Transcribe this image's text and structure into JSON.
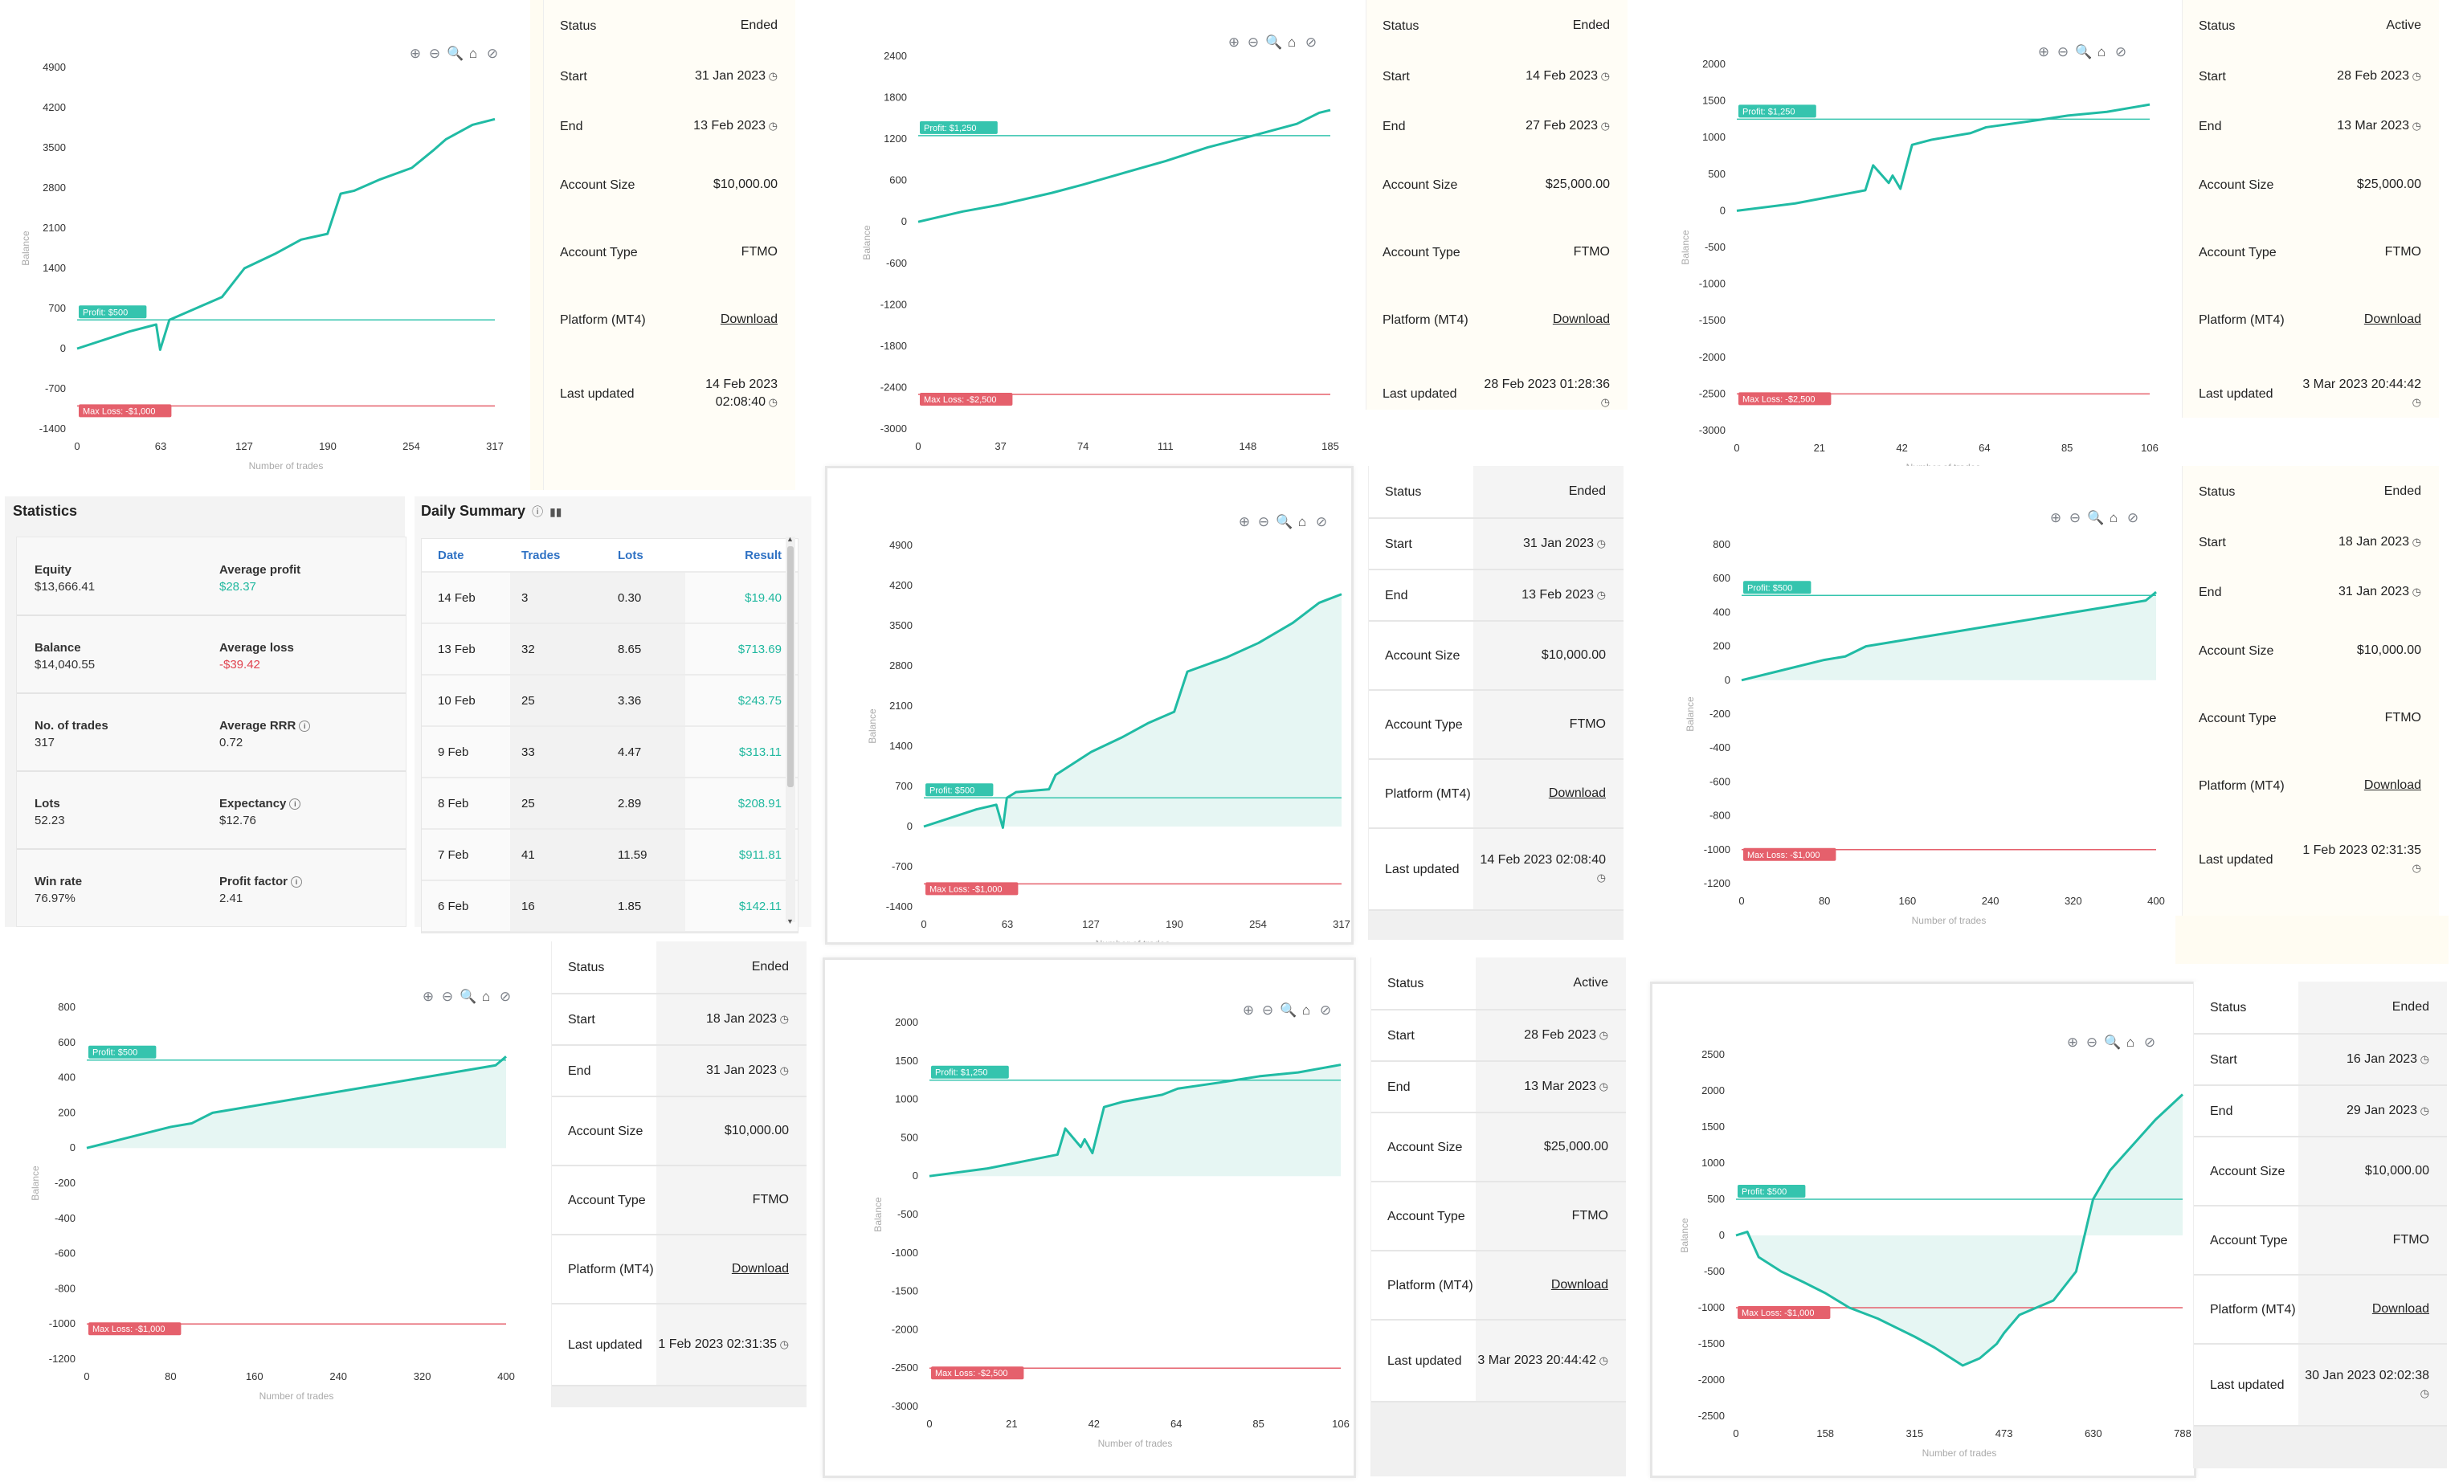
{
  "colors": {
    "line": "#20bba4",
    "profit": "#35c4ae",
    "loss": "#e5606c",
    "grid": "#f1f1f1",
    "axis": "#333333"
  },
  "toolbar_icons": [
    "zoom-in-icon",
    "zoom-out-icon",
    "magnify-icon",
    "home-icon",
    "pan-hide-icon"
  ],
  "toolbar_glyphs": {
    "zin": "⊕",
    "zout": "⊖",
    "mag": "🔍",
    "home": "⌂",
    "hide": "⊘"
  },
  "charts": [
    {
      "id": "c1",
      "ylabel": "Balance",
      "xlabel": "Number of trades",
      "yticks": [
        "4900",
        "4200",
        "3500",
        "2800",
        "2100",
        "1400",
        "700",
        "0",
        "-700",
        "-1400"
      ],
      "xticks": [
        "0",
        "63",
        "127",
        "190",
        "254",
        "317"
      ],
      "profit_label": "Profit: $500",
      "loss_label": "Max Loss: -$1,000",
      "area": false
    },
    {
      "id": "c2",
      "ylabel": "Balance",
      "xlabel": "Number of trades",
      "yticks": [
        "2400",
        "1800",
        "1200",
        "600",
        "0",
        "-600",
        "-1200",
        "-1800",
        "-2400",
        "-3000"
      ],
      "xticks": [
        "0",
        "37",
        "74",
        "111",
        "148",
        "185"
      ],
      "profit_label": "Profit: $1,250",
      "loss_label": "Max Loss: -$2,500",
      "area": false
    },
    {
      "id": "c3",
      "ylabel": "Balance",
      "xlabel": "Number of trades",
      "yticks": [
        "2000",
        "1500",
        "1000",
        "500",
        "0",
        "-500",
        "-1000",
        "-1500",
        "-2000",
        "-2500",
        "-3000"
      ],
      "xticks": [
        "0",
        "21",
        "42",
        "64",
        "85",
        "106"
      ],
      "profit_label": "Profit: $1,250",
      "loss_label": "Max Loss: -$2,500",
      "area": false
    },
    {
      "id": "c4",
      "ylabel": "Balance",
      "xlabel": "Number of trades",
      "yticks": [
        "4900",
        "4200",
        "3500",
        "2800",
        "2100",
        "1400",
        "700",
        "0",
        "-700",
        "-1400"
      ],
      "xticks": [
        "0",
        "63",
        "127",
        "190",
        "254",
        "317"
      ],
      "profit_label": "Profit: $500",
      "loss_label": "Max Loss: -$1,000",
      "area": true
    },
    {
      "id": "c5",
      "ylabel": "Balance",
      "xlabel": "Number of trades",
      "yticks": [
        "800",
        "600",
        "400",
        "200",
        "0",
        "-200",
        "-400",
        "-600",
        "-800",
        "-1000",
        "-1200"
      ],
      "xticks": [
        "0",
        "80",
        "160",
        "240",
        "320",
        "400"
      ],
      "profit_label": "Profit: $500",
      "loss_label": "Max Loss: -$1,000",
      "area": true
    },
    {
      "id": "c6",
      "ylabel": "Balance",
      "xlabel": "Number of trades",
      "yticks": [
        "800",
        "600",
        "400",
        "200",
        "0",
        "-200",
        "-400",
        "-600",
        "-800",
        "-1000",
        "-1200"
      ],
      "xticks": [
        "0",
        "80",
        "160",
        "240",
        "320",
        "400"
      ],
      "profit_label": "Profit: $500",
      "loss_label": "Max Loss: -$1,000",
      "area": true
    },
    {
      "id": "c7",
      "ylabel": "Balance",
      "xlabel": "Number of trades",
      "yticks": [
        "2000",
        "1500",
        "1000",
        "500",
        "0",
        "-500",
        "-1000",
        "-1500",
        "-2000",
        "-2500",
        "-3000"
      ],
      "xticks": [
        "0",
        "21",
        "42",
        "64",
        "85",
        "106"
      ],
      "profit_label": "Profit: $1,250",
      "loss_label": "Max Loss: -$2,500",
      "area": true
    },
    {
      "id": "c8",
      "ylabel": "Balance",
      "xlabel": "Number of trades",
      "yticks": [
        "2500",
        "2000",
        "1500",
        "1000",
        "500",
        "0",
        "-500",
        "-1000",
        "-1500",
        "-2000",
        "-2500"
      ],
      "xticks": [
        "0",
        "158",
        "315",
        "473",
        "630",
        "788"
      ],
      "profit_label": "Profit: $500",
      "loss_label": "Max Loss: -$1,000",
      "area": true
    }
  ],
  "info_labels": {
    "status": "Status",
    "start": "Start",
    "end": "End",
    "account_size": "Account Size",
    "account_type": "Account Type",
    "platform": "Platform (MT4)",
    "last_updated": "Last updated",
    "download": "Download"
  },
  "info": [
    {
      "status": "Ended",
      "start": "31 Jan 2023",
      "end": "13 Feb 2023",
      "size": "$10,000.00",
      "type": "FTMO",
      "updated": "14 Feb 2023 02:08:40"
    },
    {
      "status": "Ended",
      "start": "14 Feb 2023",
      "end": "27 Feb 2023",
      "size": "$25,000.00",
      "type": "FTMO",
      "updated": "28 Feb 2023 01:28:36"
    },
    {
      "status": "Active",
      "start": "28 Feb 2023",
      "end": "13 Mar 2023",
      "size": "$25,000.00",
      "type": "FTMO",
      "updated": "3 Mar 2023 20:44:42"
    },
    {
      "status": "Ended",
      "start": "31 Jan 2023",
      "end": "13 Feb 2023",
      "size": "$10,000.00",
      "type": "FTMO",
      "updated": "14 Feb 2023 02:08:40"
    },
    {
      "status": "Ended",
      "start": "18 Jan 2023",
      "end": "31 Jan 2023",
      "size": "$10,000.00",
      "type": "FTMO",
      "updated": "1 Feb 2023 02:31:35"
    },
    {
      "status": "Ended",
      "start": "18 Jan 2023",
      "end": "31 Jan 2023",
      "size": "$10,000.00",
      "type": "FTMO",
      "updated": "1 Feb 2023 02:31:35"
    },
    {
      "status": "Active",
      "start": "28 Feb 2023",
      "end": "13 Mar 2023",
      "size": "$25,000.00",
      "type": "FTMO",
      "updated": "3 Mar 2023 20:44:42"
    },
    {
      "status": "Ended",
      "start": "16 Jan 2023",
      "end": "29 Jan 2023",
      "size": "$10,000.00",
      "type": "FTMO",
      "updated": "30 Jan 2023 02:02:38"
    }
  ],
  "statistics": {
    "title": "Statistics",
    "rows": [
      {
        "lk": "Equity",
        "lv": "$13,666.41",
        "rk": "Average profit",
        "rv": "$28.37",
        "rv_tone": "pos",
        "info": false
      },
      {
        "lk": "Balance",
        "lv": "$14,040.55",
        "rk": "Average loss",
        "rv": "-$39.42",
        "rv_tone": "neg",
        "info": false
      },
      {
        "lk": "No. of trades",
        "lv": "317",
        "rk": "Average RRR",
        "rv": "0.72",
        "rv_tone": "",
        "info": true
      },
      {
        "lk": "Lots",
        "lv": "52.23",
        "rk": "Expectancy",
        "rv": "$12.76",
        "rv_tone": "",
        "info": true
      },
      {
        "lk": "Win rate",
        "lv": "76.97%",
        "rk": "Profit factor",
        "rv": "2.41",
        "rv_tone": "",
        "info": true
      }
    ]
  },
  "daily_summary": {
    "title": "Daily Summary",
    "headers": [
      "Date",
      "Trades",
      "Lots",
      "Result"
    ],
    "rows": [
      [
        "14 Feb",
        "3",
        "0.30",
        "$19.40"
      ],
      [
        "13 Feb",
        "32",
        "8.65",
        "$713.69"
      ],
      [
        "10 Feb",
        "25",
        "3.36",
        "$243.75"
      ],
      [
        "9 Feb",
        "33",
        "4.47",
        "$313.11"
      ],
      [
        "8 Feb",
        "25",
        "2.89",
        "$208.91"
      ],
      [
        "7 Feb",
        "41",
        "11.59",
        "$911.81"
      ],
      [
        "6 Feb",
        "16",
        "1.85",
        "$142.11"
      ]
    ]
  },
  "chart_data": [
    {
      "type": "line",
      "ylabel": "Balance",
      "xlabel": "Number of trades",
      "x_range": [
        0,
        317
      ],
      "y_range": [
        -1400,
        4900
      ],
      "profit_target": 500,
      "max_loss": -1000,
      "series": [
        {
          "x": [
            0,
            20,
            40,
            60,
            63,
            70,
            90,
            110,
            127,
            150,
            170,
            190,
            200,
            210,
            230,
            254,
            270,
            280,
            300,
            317
          ],
          "values": [
            0,
            150,
            300,
            420,
            -20,
            500,
            700,
            900,
            1400,
            1650,
            1900,
            2000,
            2700,
            2750,
            2950,
            3150,
            3450,
            3650,
            3900,
            4000
          ]
        }
      ]
    },
    {
      "type": "line",
      "ylabel": "Balance",
      "xlabel": "Number of trades",
      "x_range": [
        0,
        185
      ],
      "y_range": [
        -3000,
        2400
      ],
      "profit_target": 1250,
      "max_loss": -2500,
      "series": [
        {
          "x": [
            0,
            20,
            37,
            60,
            74,
            100,
            111,
            130,
            148,
            170,
            180,
            185
          ],
          "values": [
            0,
            150,
            250,
            420,
            540,
            780,
            880,
            1080,
            1230,
            1420,
            1580,
            1620
          ]
        }
      ]
    },
    {
      "type": "line",
      "ylabel": "Balance",
      "xlabel": "Number of trades",
      "x_range": [
        0,
        106
      ],
      "y_range": [
        -3000,
        2000
      ],
      "profit_target": 1250,
      "max_loss": -2500,
      "series": [
        {
          "x": [
            0,
            15,
            25,
            33,
            35,
            39,
            40,
            42,
            45,
            50,
            60,
            64,
            75,
            85,
            95,
            106
          ],
          "values": [
            0,
            100,
            200,
            280,
            620,
            380,
            480,
            300,
            900,
            970,
            1060,
            1140,
            1220,
            1300,
            1350,
            1450
          ]
        }
      ]
    },
    {
      "type": "line",
      "ylabel": "Balance",
      "xlabel": "Number of trades",
      "x_range": [
        0,
        317
      ],
      "y_range": [
        -1400,
        4900
      ],
      "profit_target": 500,
      "max_loss": -1000,
      "series": [
        {
          "x": [
            0,
            20,
            40,
            55,
            60,
            63,
            70,
            95,
            100,
            127,
            150,
            170,
            180,
            190,
            200,
            230,
            254,
            280,
            300,
            317
          ],
          "values": [
            0,
            150,
            300,
            380,
            -20,
            500,
            600,
            650,
            900,
            1300,
            1550,
            1800,
            1900,
            2000,
            2700,
            2950,
            3200,
            3550,
            3900,
            4050
          ]
        }
      ]
    },
    {
      "type": "line",
      "ylabel": "Balance",
      "xlabel": "Number of trades",
      "x_range": [
        0,
        400
      ],
      "y_range": [
        -1200,
        800
      ],
      "profit_target": 500,
      "max_loss": -1000,
      "series": [
        {
          "x": [
            0,
            40,
            80,
            100,
            120,
            160,
            200,
            240,
            280,
            320,
            360,
            390,
            400
          ],
          "values": [
            0,
            60,
            120,
            140,
            200,
            240,
            280,
            320,
            360,
            400,
            440,
            470,
            520
          ]
        }
      ]
    },
    {
      "type": "line",
      "ylabel": "Balance",
      "xlabel": "Number of trades",
      "x_range": [
        0,
        400
      ],
      "y_range": [
        -1200,
        800
      ],
      "profit_target": 500,
      "max_loss": -1000,
      "series": [
        {
          "x": [
            0,
            40,
            80,
            100,
            120,
            160,
            200,
            240,
            280,
            320,
            360,
            390,
            400
          ],
          "values": [
            0,
            60,
            120,
            140,
            200,
            240,
            280,
            320,
            360,
            400,
            440,
            470,
            520
          ]
        }
      ]
    },
    {
      "type": "line",
      "ylabel": "Balance",
      "xlabel": "Number of trades",
      "x_range": [
        0,
        106
      ],
      "y_range": [
        -3000,
        2000
      ],
      "profit_target": 1250,
      "max_loss": -2500,
      "series": [
        {
          "x": [
            0,
            15,
            25,
            33,
            35,
            39,
            40,
            42,
            45,
            50,
            60,
            64,
            75,
            85,
            95,
            106
          ],
          "values": [
            0,
            100,
            200,
            280,
            620,
            380,
            480,
            300,
            900,
            970,
            1060,
            1140,
            1220,
            1300,
            1350,
            1450
          ]
        }
      ]
    },
    {
      "type": "line",
      "ylabel": "Balance",
      "xlabel": "Number of trades",
      "x_range": [
        0,
        788
      ],
      "y_range": [
        -2500,
        2500
      ],
      "profit_target": 500,
      "max_loss": -1000,
      "series": [
        {
          "x": [
            0,
            20,
            40,
            80,
            120,
            158,
            200,
            250,
            315,
            350,
            400,
            430,
            460,
            473,
            500,
            560,
            600,
            630,
            660,
            700,
            740,
            788
          ],
          "values": [
            0,
            50,
            -300,
            -500,
            -650,
            -800,
            -1000,
            -1150,
            -1400,
            -1550,
            -1800,
            -1700,
            -1500,
            -1350,
            -1100,
            -900,
            -500,
            500,
            900,
            1250,
            1600,
            1950
          ]
        }
      ]
    }
  ]
}
